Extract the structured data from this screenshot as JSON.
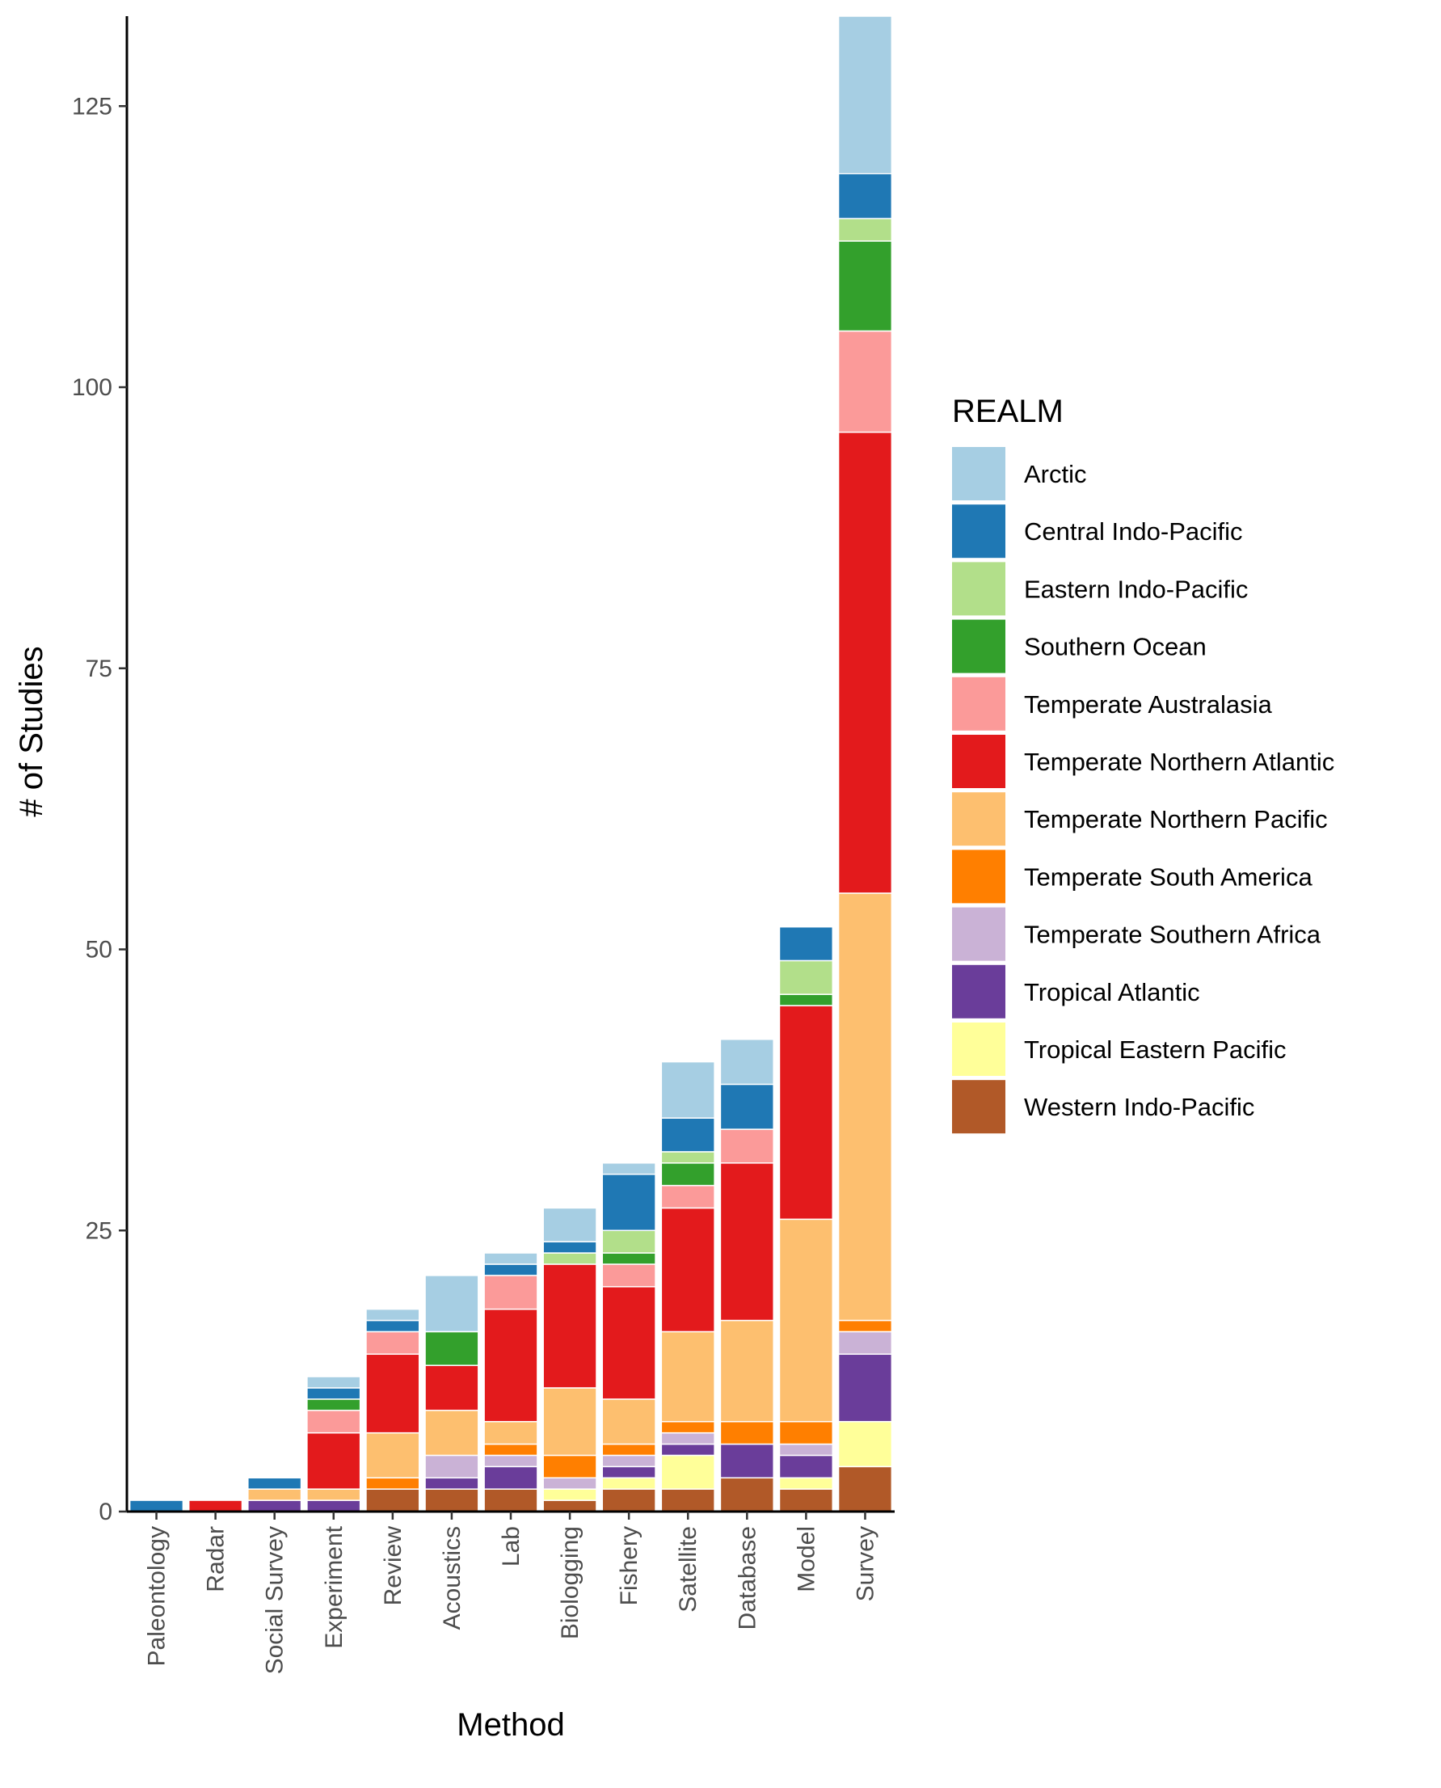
{
  "chart_data": {
    "type": "bar",
    "stacked": true,
    "xlabel": "Method",
    "ylabel": "# of Studies",
    "ylim": [
      0,
      133
    ],
    "yticks": [
      0,
      25,
      50,
      75,
      100,
      125
    ],
    "grid": false,
    "legend": {
      "title": "REALM",
      "position": "right"
    },
    "categories": [
      "Paleontology",
      "Radar",
      "Social Survey",
      "Experiment",
      "Review",
      "Acoustics",
      "Lab",
      "Biologging",
      "Fishery",
      "Satellite",
      "Database",
      "Model",
      "Survey"
    ],
    "series": [
      {
        "name": "Western Indo-Pacific",
        "color": "#B15928",
        "values": [
          0,
          0,
          0,
          0,
          2,
          2,
          2,
          1,
          2,
          2,
          3,
          2,
          4
        ]
      },
      {
        "name": "Tropical Eastern Pacific",
        "color": "#FFFF99",
        "values": [
          0,
          0,
          0,
          0,
          0,
          0,
          0,
          1,
          1,
          3,
          0,
          1,
          4
        ]
      },
      {
        "name": "Tropical Atlantic",
        "color": "#6A3D9A",
        "values": [
          0,
          0,
          1,
          1,
          0,
          1,
          2,
          0,
          1,
          1,
          3,
          2,
          6
        ]
      },
      {
        "name": "Temperate Southern Africa",
        "color": "#CAB2D6",
        "values": [
          0,
          0,
          0,
          0,
          0,
          2,
          1,
          1,
          1,
          1,
          0,
          1,
          2
        ]
      },
      {
        "name": "Temperate South America",
        "color": "#FF7F00",
        "values": [
          0,
          0,
          0,
          0,
          1,
          0,
          1,
          2,
          1,
          1,
          2,
          2,
          1
        ]
      },
      {
        "name": "Temperate Northern Pacific",
        "color": "#FDBF6F",
        "values": [
          0,
          0,
          1,
          1,
          4,
          4,
          2,
          6,
          4,
          8,
          9,
          18,
          38
        ]
      },
      {
        "name": "Temperate Northern Atlantic",
        "color": "#E31A1C",
        "values": [
          0,
          1,
          0,
          5,
          7,
          4,
          10,
          11,
          10,
          11,
          14,
          19,
          41
        ]
      },
      {
        "name": "Temperate Australasia",
        "color": "#FB9A99",
        "values": [
          0,
          0,
          0,
          2,
          2,
          0,
          3,
          0,
          2,
          2,
          3,
          0,
          9
        ]
      },
      {
        "name": "Southern Ocean",
        "color": "#33A02C",
        "values": [
          0,
          0,
          0,
          1,
          0,
          3,
          0,
          0,
          1,
          2,
          0,
          1,
          8
        ]
      },
      {
        "name": "Eastern Indo-Pacific",
        "color": "#B2DF8A",
        "values": [
          0,
          0,
          0,
          0,
          0,
          0,
          0,
          1,
          2,
          1,
          0,
          3,
          2
        ]
      },
      {
        "name": "Central Indo-Pacific",
        "color": "#1F78B4",
        "values": [
          1,
          0,
          1,
          1,
          1,
          0,
          1,
          1,
          5,
          3,
          4,
          3,
          4
        ]
      },
      {
        "name": "Arctic",
        "color": "#A6CEE3",
        "values": [
          0,
          0,
          0,
          1,
          1,
          5,
          1,
          3,
          1,
          5,
          4,
          0,
          14
        ]
      }
    ],
    "legend_order": [
      "Arctic",
      "Central Indo-Pacific",
      "Eastern Indo-Pacific",
      "Southern Ocean",
      "Temperate Australasia",
      "Temperate Northern Atlantic",
      "Temperate Northern Pacific",
      "Temperate South America",
      "Temperate Southern Africa",
      "Tropical Atlantic",
      "Tropical Eastern Pacific",
      "Western Indo-Pacific"
    ]
  }
}
